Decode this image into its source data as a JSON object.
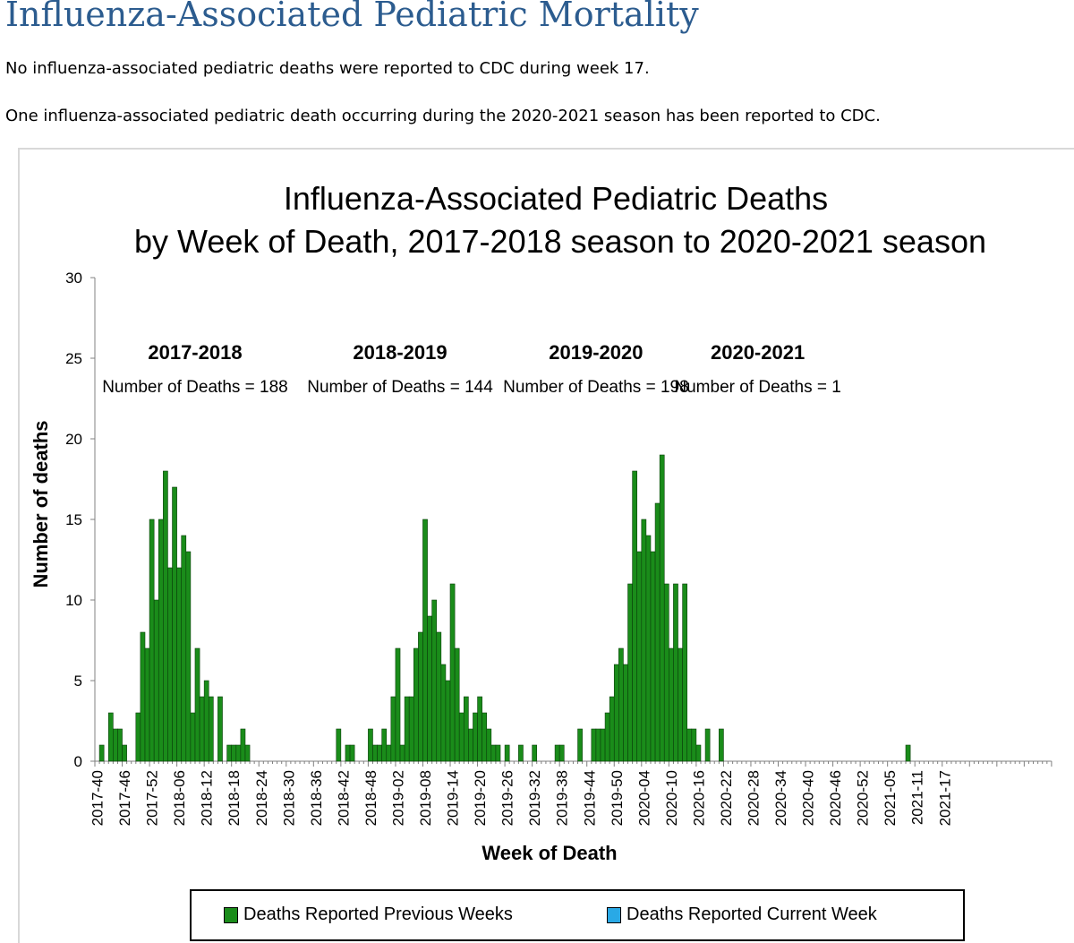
{
  "page": {
    "title": "Influenza-Associated Pediatric Mortality",
    "paragraph1": "No influenza-associated pediatric deaths were reported to CDC during week 17.",
    "paragraph2": "One influenza-associated pediatric death occurring during the 2020-2021 season has been reported to CDC."
  },
  "colors": {
    "title": "#2c5c8f",
    "previous_weeks": "#1a8c1a",
    "current_week": "#29a9e6"
  },
  "chart_data": {
    "type": "bar",
    "title": [
      "Influenza-Associated Pediatric Deaths",
      "by Week of Death, 2017-2018 season to 2020-2021 season"
    ],
    "xlabel": "Week of Death",
    "ylabel": "Number of deaths",
    "ylim": [
      0,
      30
    ],
    "yticks": [
      0,
      5,
      10,
      15,
      20,
      25,
      30
    ],
    "grid": false,
    "start_label": "2017-40",
    "xtick_labels": [
      "2017-40",
      "2017-46",
      "2017-52",
      "2018-06",
      "2018-12",
      "2018-18",
      "2018-24",
      "2018-30",
      "2018-36",
      "2018-42",
      "2018-48",
      "2019-02",
      "2019-08",
      "2019-14",
      "2019-20",
      "2019-26",
      "2019-32",
      "2019-38",
      "2019-44",
      "2019-50",
      "2020-04",
      "2020-10",
      "2020-16",
      "2020-22",
      "2020-28",
      "2020-34",
      "2020-40",
      "2020-46",
      "2020-52",
      "2021-05",
      "2021-11",
      "2021-17"
    ],
    "series": [
      {
        "name": "Deaths Reported Previous Weeks",
        "values": [
          0,
          1,
          0,
          3,
          2,
          2,
          1,
          0,
          0,
          3,
          8,
          7,
          15,
          10,
          15,
          18,
          12,
          17,
          12,
          14,
          13,
          3,
          7,
          4,
          5,
          4,
          0,
          4,
          0,
          1,
          1,
          1,
          2,
          1,
          0,
          0,
          0,
          0,
          0,
          0,
          0,
          0,
          0,
          0,
          0,
          0,
          0,
          0,
          0,
          0,
          0,
          0,
          0,
          2,
          0,
          1,
          1,
          0,
          0,
          0,
          2,
          1,
          1,
          2,
          1,
          4,
          7,
          1,
          4,
          4,
          7,
          8,
          15,
          9,
          10,
          8,
          6,
          5,
          11,
          7,
          3,
          4,
          2,
          3,
          4,
          3,
          2,
          1,
          1,
          0,
          1,
          0,
          0,
          1,
          0,
          0,
          1,
          0,
          0,
          0,
          0,
          1,
          1,
          0,
          0,
          0,
          2,
          0,
          0,
          2,
          2,
          2,
          3,
          4,
          6,
          7,
          6,
          11,
          18,
          13,
          15,
          14,
          13,
          16,
          19,
          11,
          7,
          11,
          7,
          11,
          2,
          2,
          1,
          0,
          2,
          0,
          0,
          2,
          0,
          0,
          0,
          0,
          0,
          0,
          0,
          0,
          0,
          0,
          0,
          0,
          0,
          0,
          0,
          0,
          0,
          0,
          0,
          0,
          0,
          0,
          0,
          0,
          0,
          0,
          0,
          0,
          0,
          0,
          0,
          0,
          0,
          0,
          0,
          0,
          0,
          0,
          0,
          0,
          1,
          0,
          0,
          0,
          0,
          0,
          0,
          0,
          0,
          0,
          0,
          0,
          0,
          0,
          0,
          0,
          0,
          0,
          0,
          0,
          0,
          0,
          0,
          0,
          0,
          0,
          0,
          0,
          0,
          0,
          0,
          0
        ]
      },
      {
        "name": "Deaths Reported Current Week",
        "values": []
      }
    ],
    "annotations": [
      {
        "season": "2017-2018",
        "text": "Number of Deaths = 188",
        "center_week": 22
      },
      {
        "season": "2018-2019",
        "text": "Number of Deaths = 144",
        "center_week": 67
      },
      {
        "season": "2019-2020",
        "text": "Number of Deaths = 198",
        "center_week": 110
      },
      {
        "season": "2020-2021",
        "text": "Number of Deaths = 1",
        "center_week": 145.5
      }
    ]
  }
}
